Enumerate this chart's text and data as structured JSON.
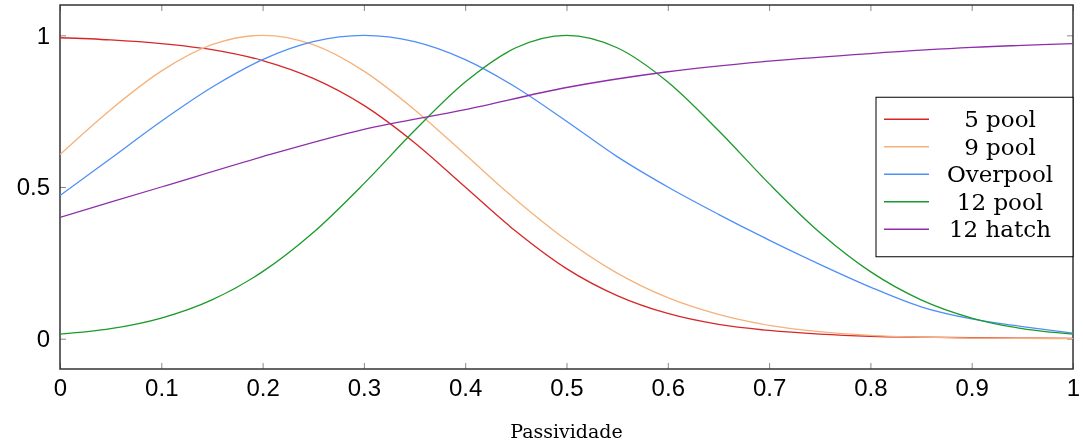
{
  "chart_data": {
    "type": "line",
    "xlabel": "Passividade",
    "xlim": [
      0,
      1
    ],
    "ylim": [
      -0.1,
      1.1
    ],
    "xticks": [
      0,
      0.1,
      0.2,
      0.3,
      0.4,
      0.5,
      0.6,
      0.7,
      0.8,
      0.9,
      1
    ],
    "yticks": [
      0,
      0.5,
      1
    ],
    "x": [
      0,
      0.05,
      0.1,
      0.15,
      0.2,
      0.25,
      0.3,
      0.35,
      0.4,
      0.45,
      0.5,
      0.55,
      0.6,
      0.65,
      0.7,
      0.75,
      0.8,
      0.85,
      0.9,
      0.95,
      1
    ],
    "grid": false,
    "legend": "right",
    "marker": "none",
    "line_style": "solid",
    "series": [
      {
        "name": "5 pool",
        "color": "#d62728",
        "values": [
          0.992,
          0.985,
          0.973,
          0.953,
          0.917,
          0.858,
          0.769,
          0.646,
          0.5,
          0.354,
          0.231,
          0.142,
          0.083,
          0.047,
          0.027,
          0.015,
          0.008,
          0.005,
          0.003,
          null,
          0.001
        ]
      },
      {
        "name": "9 pool",
        "color": "#f5b27a",
        "values": [
          0.607,
          0.755,
          0.882,
          0.969,
          1,
          0.969,
          0.882,
          0.755,
          0.607,
          0.458,
          0.325,
          0.216,
          0.135,
          0.08,
          0.044,
          0.023,
          0.011,
          0.005,
          0.002,
          0.001,
          0
        ]
      },
      {
        "name": "Overpool",
        "color": "#4f8ff7",
        "values": [
          0.472,
          0.594,
          0.717,
          0.829,
          0.92,
          0.979,
          1,
          0.979,
          0.92,
          0.829,
          0.717,
          0.6,
          0.5,
          0.41,
          0.325,
          0.245,
          0.17,
          0.105,
          0.065,
          0.04,
          0.018
        ]
      },
      {
        "name": "12 pool",
        "color": "#1a9a2a",
        "values": [
          0.015,
          0.033,
          0.068,
          0.128,
          0.221,
          0.35,
          0.511,
          0.686,
          0.846,
          0.959,
          1,
          0.959,
          0.846,
          0.686,
          0.511,
          0.35,
          0.221,
          0.128,
          0.068,
          0.033,
          0.015
        ]
      },
      {
        "name": "12 hatch",
        "color": "#8f2eaa",
        "x": [
          0,
          0.1,
          0.2,
          0.3,
          0.4,
          0.5,
          0.6,
          0.7,
          0.8,
          0.9,
          1
        ],
        "values": [
          0.4,
          0.5,
          0.6,
          0.69,
          0.755,
          0.828,
          0.88,
          0.915,
          0.94,
          0.96,
          0.973
        ]
      }
    ]
  }
}
